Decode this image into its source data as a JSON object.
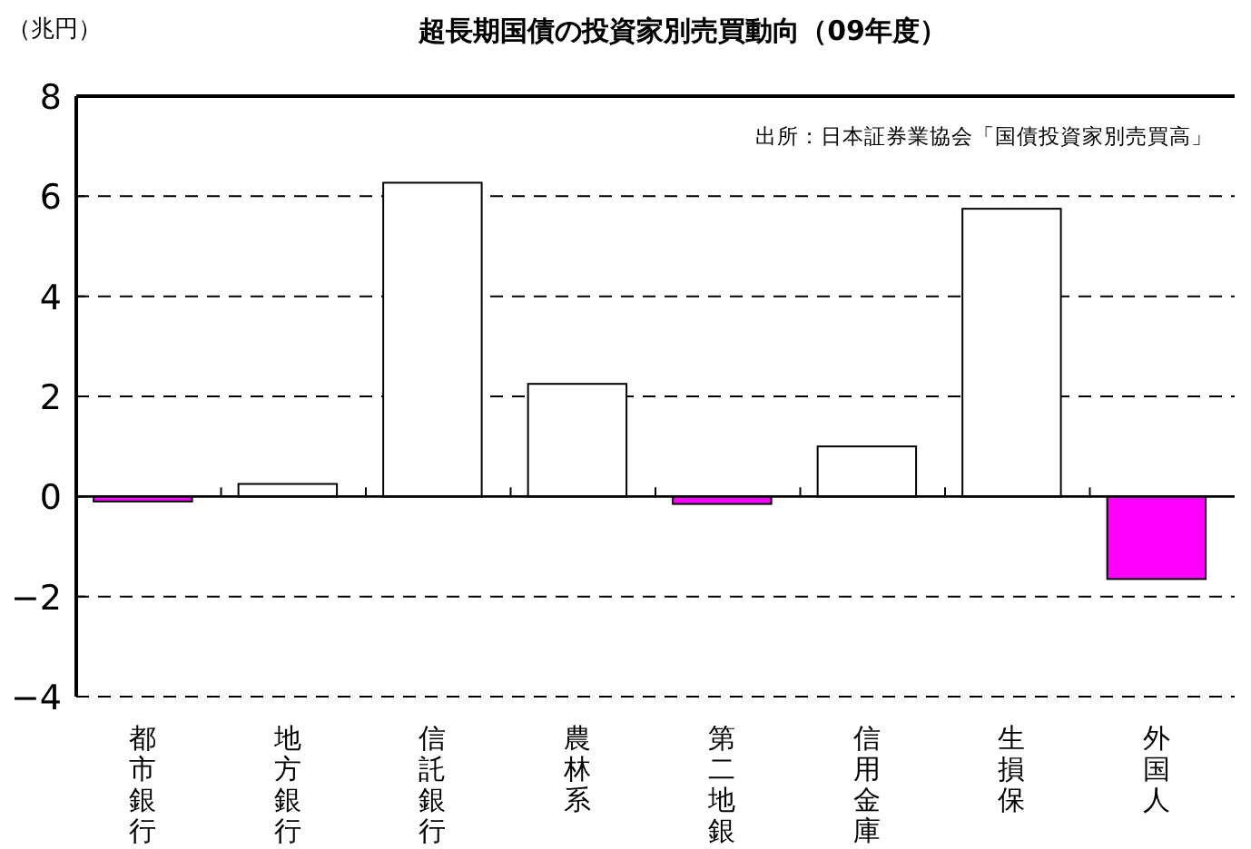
{
  "chart_data": {
    "type": "bar",
    "title": "超長期国債の投資家別売買動向（09年度）",
    "ylabel": "（兆円）",
    "annotations": [
      "出所：日本証券業協会「国債投資家別売買高」"
    ],
    "categories": [
      "都市銀行",
      "地方銀行",
      "信託銀行",
      "農林系",
      "第二地銀",
      "信用金庫",
      "生損保",
      "外国人"
    ],
    "values": [
      -0.1,
      0.25,
      6.27,
      2.25,
      -0.15,
      1.0,
      5.75,
      -1.65
    ],
    "colors": [
      "#ff00ff",
      "#ffffff",
      "#ffffff",
      "#ffffff",
      "#ff00ff",
      "#ffffff",
      "#ffffff",
      "#ff00ff"
    ],
    "ylim": [
      -4,
      8
    ],
    "yticks": [
      -4,
      -2,
      0,
      2,
      4,
      6,
      8
    ],
    "grid": "y",
    "legend": false
  }
}
